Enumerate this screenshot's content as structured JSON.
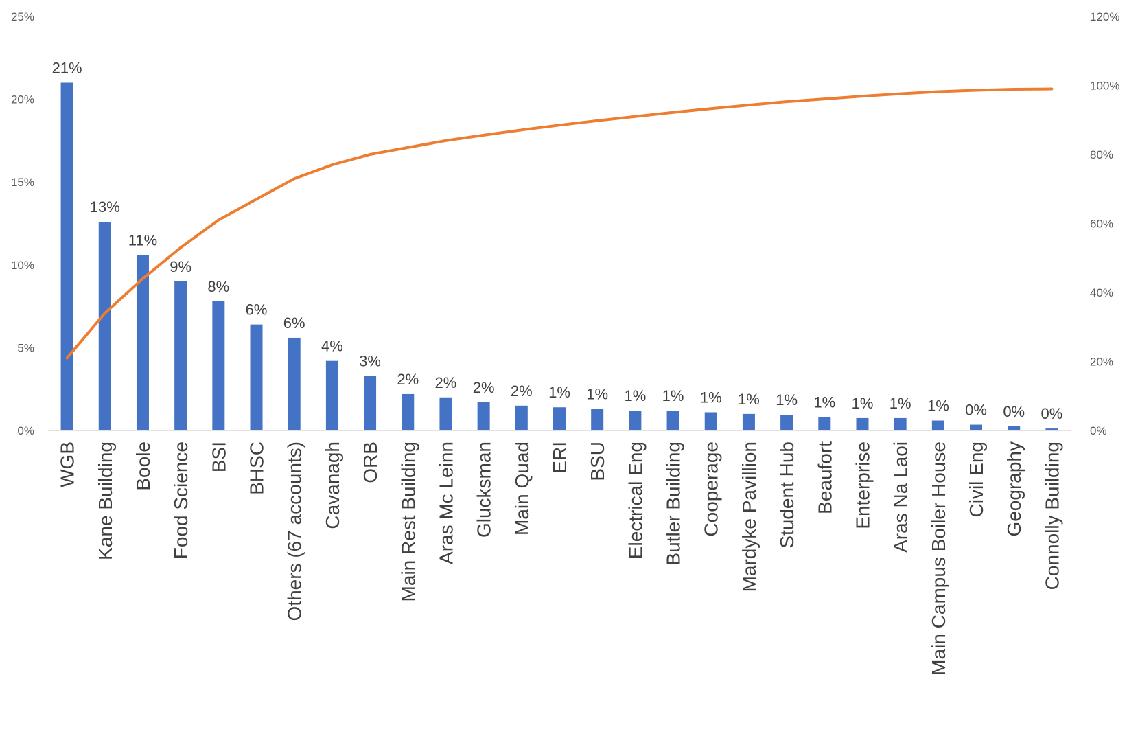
{
  "chart_data": {
    "type": "bar",
    "categories": [
      "WGB",
      "Kane Building",
      "Boole",
      "Food Science",
      "BSI",
      "BHSC",
      "Others (67 accounts)",
      "Cavanagh",
      "ORB",
      "Main Rest Building",
      "Aras Mc Leinn",
      "Glucksman",
      "Main Quad",
      "ERI",
      "BSU",
      "Electrical Eng",
      "Butler Building",
      "Cooperage",
      "Mardyke Pavillion",
      "Student Hub",
      "Beaufort",
      "Enterprise",
      "Aras Na Laoi",
      "Main Campus Boiler House",
      "Civil Eng",
      "Geography",
      "Connolly Building"
    ],
    "series": [
      {
        "type": "bar",
        "axis": "left",
        "color": "#4472C4",
        "values": [
          21.0,
          12.6,
          10.6,
          9.0,
          7.8,
          6.4,
          5.6,
          4.2,
          3.3,
          2.2,
          2.0,
          1.7,
          1.5,
          1.4,
          1.3,
          1.2,
          1.2,
          1.1,
          1.0,
          0.95,
          0.8,
          0.75,
          0.75,
          0.6,
          0.35,
          0.25,
          0.12
        ],
        "data_labels": [
          "21%",
          "13%",
          "11%",
          "9%",
          "8%",
          "6%",
          "6%",
          "4%",
          "3%",
          "2%",
          "2%",
          "2%",
          "2%",
          "1%",
          "1%",
          "1%",
          "1%",
          "1%",
          "1%",
          "1%",
          "1%",
          "1%",
          "1%",
          "1%",
          "0%",
          "0%",
          "0%"
        ]
      },
      {
        "type": "line",
        "axis": "right",
        "color": "#ED7D31",
        "values": [
          21,
          34,
          44,
          53,
          61,
          67,
          73,
          77,
          80,
          82,
          84,
          85.6,
          87.1,
          88.5,
          89.8,
          91,
          92.2,
          93.3,
          94.3,
          95.3,
          96.1,
          96.9,
          97.6,
          98.2,
          98.6,
          98.9,
          99
        ]
      }
    ],
    "y_left": {
      "min": 0,
      "max": 25,
      "ticks": [
        "0%",
        "5%",
        "10%",
        "15%",
        "20%",
        "25%"
      ],
      "tick_values": [
        0,
        5,
        10,
        15,
        20,
        25
      ]
    },
    "y_right": {
      "min": 0,
      "max": 120,
      "ticks": [
        "0%",
        "20%",
        "40%",
        "60%",
        "80%",
        "100%",
        "120%"
      ],
      "tick_values": [
        0,
        20,
        40,
        60,
        80,
        100,
        120
      ]
    },
    "grid": false,
    "legend": "none"
  }
}
